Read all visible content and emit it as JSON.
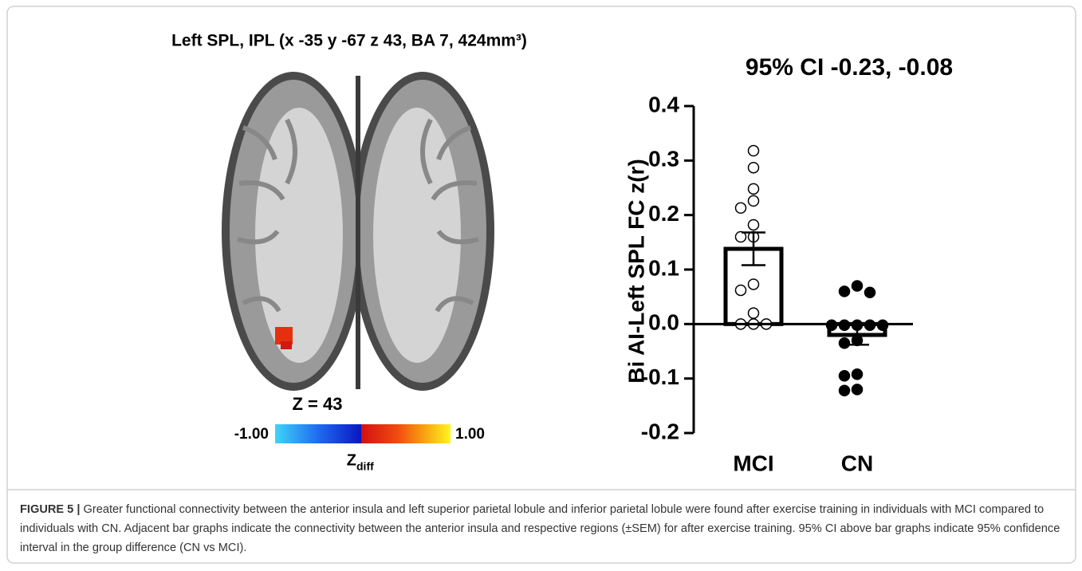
{
  "panel": {
    "title": "Left SPL, IPL (x -35 y -67 z 43, BA 7, 424mm³)",
    "slice_label": "Z = 43",
    "colorbar_min": "-1.00",
    "colorbar_max": "1.00",
    "colorbar_label": "Z",
    "colorbar_label_sub": "diff"
  },
  "chart_data": {
    "type": "bar",
    "title": "95% CI -0.23, -0.08",
    "y_label": "Bi AI-Left SPL FC z(r)",
    "categories": [
      "MCI",
      "CN"
    ],
    "values": [
      0.138,
      -0.02
    ],
    "errors": [
      0.03,
      0.018
    ],
    "points": [
      [
        0.318,
        0.287,
        0.248,
        0.226,
        0.213,
        0.182,
        0.16,
        0.16,
        0.073,
        0.062,
        0.02,
        0,
        0,
        0
      ],
      [
        0.07,
        0.06,
        0.058,
        -0.002,
        -0.002,
        -0.002,
        -0.002,
        -0.002,
        -0.03,
        -0.035,
        -0.092,
        -0.095,
        -0.12,
        -0.122
      ]
    ],
    "marker_fill": [
      "#ffffff",
      "#000000"
    ],
    "color": "#ffffff",
    "ylim": [
      -0.2,
      0.4
    ],
    "yticks": [
      0.4,
      0.3,
      0.2,
      0.1,
      {
        "value": 0,
        "label": "0.0"
      },
      -0.1,
      -0.2
    ]
  },
  "caption": {
    "label": "FIGURE 5 |",
    "text": "Greater functional connectivity between the anterior insula and left superior parietal lobule and inferior parietal lobule were found after exercise training in individuals with MCI compared to individuals with CN. Adjacent bar graphs indicate the connectivity between the anterior insula and respective regions (±SEM) for after exercise training. 95% CI above bar graphs indicate 95% confidence interval in the group difference (CN vs MCI)."
  }
}
